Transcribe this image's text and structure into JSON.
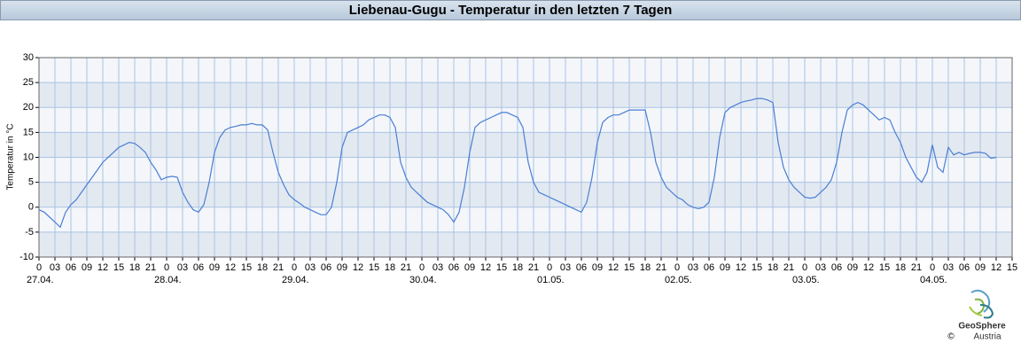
{
  "chart_data": {
    "type": "line",
    "title": "Liebenau-Gugu - Temperatur in den letzten 7 Tagen",
    "y_label": "Temperatur in °C",
    "logo_name": "GeoSphere",
    "logo_subname": "Austria",
    "copyright": "©",
    "xlim": [
      0,
      183
    ],
    "ylim": [
      -10,
      30
    ],
    "yticks": [
      -10,
      -5,
      0,
      5,
      10,
      15,
      20,
      25,
      30
    ],
    "grid": true,
    "band_colors": [
      "#f4f6fa",
      "#e3e9f1"
    ],
    "xticks": [
      0,
      {
        "value": 3,
        "label": "03"
      },
      {
        "value": 6,
        "label": "06"
      },
      {
        "value": 9,
        "label": "09"
      },
      12,
      15,
      18,
      21,
      {
        "value": 24,
        "label": "0"
      },
      {
        "value": 27,
        "label": "03"
      },
      {
        "value": 30,
        "label": "06"
      },
      {
        "value": 33,
        "label": "09"
      },
      {
        "value": 36,
        "label": "12"
      },
      {
        "value": 39,
        "label": "15"
      },
      {
        "value": 42,
        "label": "18"
      },
      {
        "value": 45,
        "label": "21"
      },
      {
        "value": 48,
        "label": "0"
      },
      {
        "value": 51,
        "label": "03"
      },
      {
        "value": 54,
        "label": "06"
      },
      {
        "value": 57,
        "label": "09"
      },
      {
        "value": 60,
        "label": "12"
      },
      {
        "value": 63,
        "label": "15"
      },
      {
        "value": 66,
        "label": "18"
      },
      {
        "value": 69,
        "label": "21"
      },
      {
        "value": 72,
        "label": "0"
      },
      {
        "value": 75,
        "label": "03"
      },
      {
        "value": 78,
        "label": "06"
      },
      {
        "value": 81,
        "label": "09"
      },
      {
        "value": 84,
        "label": "12"
      },
      {
        "value": 87,
        "label": "15"
      },
      {
        "value": 90,
        "label": "18"
      },
      {
        "value": 93,
        "label": "21"
      },
      {
        "value": 96,
        "label": "0"
      },
      {
        "value": 99,
        "label": "03"
      },
      {
        "value": 102,
        "label": "06"
      },
      {
        "value": 105,
        "label": "09"
      },
      {
        "value": 108,
        "label": "12"
      },
      {
        "value": 111,
        "label": "15"
      },
      {
        "value": 114,
        "label": "18"
      },
      {
        "value": 117,
        "label": "21"
      },
      {
        "value": 120,
        "label": "0"
      },
      {
        "value": 123,
        "label": "03"
      },
      {
        "value": 126,
        "label": "06"
      },
      {
        "value": 129,
        "label": "09"
      },
      {
        "value": 132,
        "label": "12"
      },
      {
        "value": 135,
        "label": "15"
      },
      {
        "value": 138,
        "label": "18"
      },
      {
        "value": 141,
        "label": "21"
      },
      {
        "value": 144,
        "label": "0"
      },
      {
        "value": 147,
        "label": "03"
      },
      {
        "value": 150,
        "label": "06"
      },
      {
        "value": 153,
        "label": "09"
      },
      {
        "value": 156,
        "label": "12"
      },
      {
        "value": 159,
        "label": "15"
      },
      {
        "value": 162,
        "label": "18"
      },
      {
        "value": 165,
        "label": "21"
      },
      {
        "value": 168,
        "label": "0"
      },
      {
        "value": 171,
        "label": "03"
      },
      {
        "value": 174,
        "label": "06"
      },
      {
        "value": 177,
        "label": "09"
      },
      {
        "value": 180,
        "label": "12"
      },
      {
        "value": 183,
        "label": "15"
      }
    ],
    "day_labels": [
      {
        "value": 0,
        "label": "27.04."
      },
      {
        "value": 24,
        "label": "28.04."
      },
      {
        "value": 48,
        "label": "29.04."
      },
      {
        "value": 72,
        "label": "30.04."
      },
      {
        "value": 96,
        "label": "01.05."
      },
      {
        "value": 120,
        "label": "02.05."
      },
      {
        "value": 144,
        "label": "03.05."
      },
      {
        "value": 168,
        "label": "04.05."
      }
    ],
    "x": [
      0,
      1,
      2,
      3,
      4,
      5,
      6,
      7,
      8,
      9,
      10,
      11,
      12,
      13,
      14,
      15,
      16,
      17,
      18,
      19,
      20,
      21,
      22,
      23,
      24,
      25,
      26,
      27,
      28,
      29,
      30,
      31,
      32,
      33,
      34,
      35,
      36,
      37,
      38,
      39,
      40,
      41,
      42,
      43,
      44,
      45,
      46,
      47,
      48,
      49,
      50,
      51,
      52,
      53,
      54,
      55,
      56,
      57,
      58,
      59,
      60,
      61,
      62,
      63,
      64,
      65,
      66,
      67,
      68,
      69,
      70,
      71,
      72,
      73,
      74,
      75,
      76,
      77,
      78,
      79,
      80,
      81,
      82,
      83,
      84,
      85,
      86,
      87,
      88,
      89,
      90,
      91,
      92,
      93,
      94,
      95,
      96,
      97,
      98,
      99,
      100,
      101,
      102,
      103,
      104,
      105,
      106,
      107,
      108,
      109,
      110,
      111,
      112,
      113,
      114,
      115,
      116,
      117,
      118,
      119,
      120,
      121,
      122,
      123,
      124,
      125,
      126,
      127,
      128,
      129,
      130,
      131,
      132,
      133,
      134,
      135,
      136,
      137,
      138,
      139,
      140,
      141,
      142,
      143,
      144,
      145,
      146,
      147,
      148,
      149,
      150,
      151,
      152,
      153,
      154,
      155,
      156,
      157,
      158,
      159,
      160,
      161,
      162,
      163,
      164,
      165,
      166,
      167,
      168,
      169,
      170,
      171,
      172,
      173,
      174,
      175,
      176,
      177,
      178,
      179,
      180
    ],
    "series": [
      {
        "color": "#4a7fd4",
        "values": [
          -0.5,
          -1,
          -2,
          -3,
          -4,
          -1,
          0.5,
          1.5,
          3,
          4.5,
          6,
          7.5,
          9,
          10,
          11,
          12,
          12.5,
          13,
          12.8,
          12,
          11,
          9,
          7.5,
          5.5,
          6,
          6.2,
          6,
          3,
          1,
          -0.5,
          -1,
          0.5,
          5,
          11,
          14,
          15.5,
          16,
          16.2,
          16.5,
          16.5,
          16.8,
          16.5,
          16.5,
          15.5,
          11,
          7,
          4.5,
          2.5,
          1.5,
          0.8,
          0,
          -0.5,
          -1,
          -1.5,
          -1.5,
          0,
          5,
          12,
          15,
          15.5,
          16,
          16.5,
          17.5,
          18,
          18.5,
          18.5,
          18,
          16,
          9,
          6,
          4,
          3,
          2,
          1,
          0.5,
          0,
          -0.5,
          -1.5,
          -3,
          -1,
          4,
          11,
          16,
          17,
          17.5,
          18,
          18.5,
          19,
          19,
          18.5,
          18,
          16,
          9,
          5,
          3,
          2.5,
          2,
          1.5,
          1,
          0.5,
          0,
          -0.5,
          -1,
          1,
          6,
          13,
          17,
          18,
          18.5,
          18.5,
          19,
          19.5,
          19.5,
          19.5,
          19.5,
          15,
          9,
          6,
          4,
          3,
          2,
          1.5,
          0.5,
          0,
          -0.3,
          0,
          1,
          6,
          14,
          19,
          20,
          20.5,
          21,
          21.3,
          21.5,
          21.8,
          21.8,
          21.5,
          21,
          13,
          8,
          5.5,
          4,
          3,
          2,
          1.8,
          2,
          3,
          4,
          5.5,
          9,
          15,
          19.5,
          20.5,
          21,
          20.5,
          19.5,
          18.5,
          17.5,
          18,
          17.5,
          15,
          13,
          10,
          8,
          6,
          5,
          7,
          12.5,
          8,
          7,
          12,
          10.5,
          11,
          10.5,
          10.8,
          11,
          11,
          10.8,
          9.8,
          10
        ]
      }
    ]
  }
}
